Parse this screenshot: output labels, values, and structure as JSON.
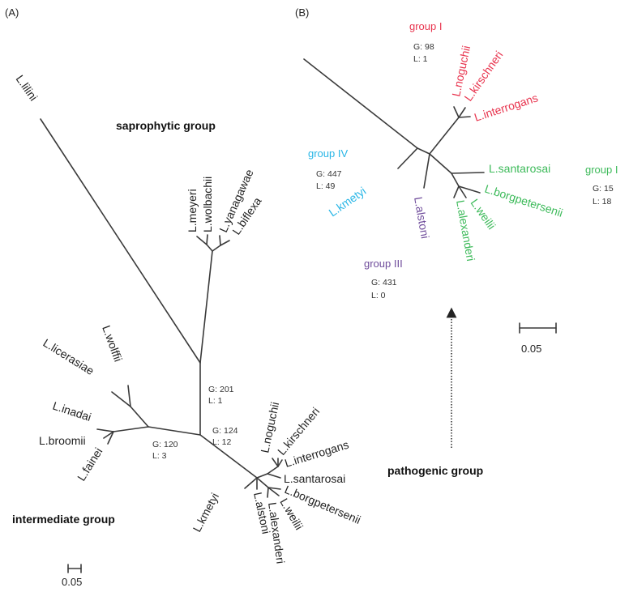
{
  "panel_a": {
    "label": "(A)",
    "groups": {
      "saprophytic": "saprophytic group",
      "intermediate": "intermediate group"
    },
    "taxa": {
      "lilini": "L.lilini",
      "meyeri": "L.meyeri",
      "wolbachii": "L.wolbachii",
      "yanagawae": "L.yanagawae",
      "biflexa": "L.biflexa",
      "licerasiae": "L.licerasiae",
      "wolffii": "L.wolffii",
      "inadai": "L.inadai",
      "broomii": "L.broomii",
      "fainei": "L.fainei",
      "kmetyi": "L.kmetyi",
      "alstoni": "L.alstoni",
      "alexanderi": "L.alexanderi",
      "weilii": "L.weilii",
      "borgpetersenii": "L.borgpetersenii",
      "santarosai": "L.santarosai",
      "interrogans": "L.interrogans",
      "kirschneri": "L.kirschneri",
      "noguchii": "L.noguchii"
    },
    "stats": {
      "node_201": {
        "g": "G:  201",
        "l": "L:   1"
      },
      "node_124": {
        "g": "G:  124",
        "l": "L:   12"
      },
      "node_120": {
        "g": "G:  120",
        "l": "L:   3"
      }
    },
    "scale_label": "0.05"
  },
  "panel_b": {
    "label": "(B)",
    "groups": {
      "group_i_top": {
        "name": "group I",
        "g": "G:   98",
        "l": "L:    1",
        "color": "#e8344e"
      },
      "group_iv": {
        "name": "group IV",
        "g": "G:   447",
        "l": "L:    49",
        "color": "#29b6e6"
      },
      "group_iii": {
        "name": "group III",
        "g": "G:   431",
        "l": "L:    0",
        "color": "#6f4c9b"
      },
      "group_i_right": {
        "name": "group I",
        "g": "G:   15",
        "l": "L:    18",
        "color": "#3dba5a"
      }
    },
    "taxa": {
      "noguchii": "L.noguchii",
      "kirschneri": "L.kirschneri",
      "interrogans": "L.interrogans",
      "santarosai": "L.santarosai",
      "borgpetersenii": "L.borgpetersenii",
      "weilii": "L.weilii",
      "alexanderi": "L.alexanderi",
      "alstoni": "L.alstoni",
      "kmetyi": "L.kmetyi"
    },
    "scale_label": "0.05",
    "pathogenic_label": "pathogenic group"
  }
}
